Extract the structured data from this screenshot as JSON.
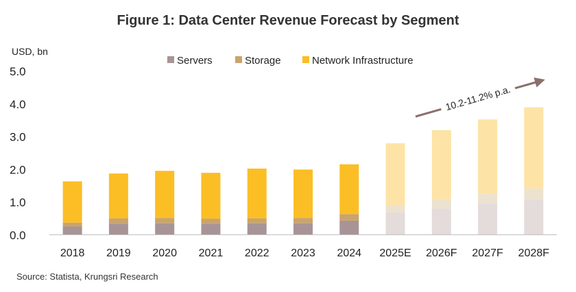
{
  "chart_data": {
    "type": "bar",
    "stacked": true,
    "title": "Figure 1: Data Center Revenue Forecast by Segment",
    "ylabel": "USD, bn",
    "xlabel": "",
    "ylim": [
      0,
      5.0
    ],
    "yticks": [
      "0.0",
      "1.0",
      "2.0",
      "3.0",
      "4.0",
      "5.0"
    ],
    "categories": [
      "2018",
      "2019",
      "2020",
      "2021",
      "2022",
      "2023",
      "2024",
      "2025E",
      "2026F",
      "2027F",
      "2028F"
    ],
    "forecast_from_index": 7,
    "series": [
      {
        "name": "Servers",
        "color": "#a89496",
        "forecast_color": "#e3dcdb",
        "values": [
          0.24,
          0.33,
          0.34,
          0.33,
          0.34,
          0.34,
          0.42,
          0.66,
          0.79,
          0.94,
          1.06
        ]
      },
      {
        "name": "Storage",
        "color": "#c9a46c",
        "forecast_color": "#ede2cf",
        "values": [
          0.12,
          0.16,
          0.16,
          0.15,
          0.15,
          0.16,
          0.2,
          0.24,
          0.29,
          0.3,
          0.34
        ]
      },
      {
        "name": "Network Infrastructure",
        "color": "#fbbe25",
        "forecast_color": "#fde3a5",
        "values": [
          1.26,
          1.37,
          1.44,
          1.4,
          1.52,
          1.48,
          1.52,
          1.88,
          2.1,
          2.27,
          2.48
        ]
      }
    ],
    "legend_position": "top-center",
    "annotation": {
      "text": "10.2-11.2% p.a.",
      "arrow_color": "#8a6f6b"
    },
    "source": "Source: Statista, Krungsri Research"
  }
}
